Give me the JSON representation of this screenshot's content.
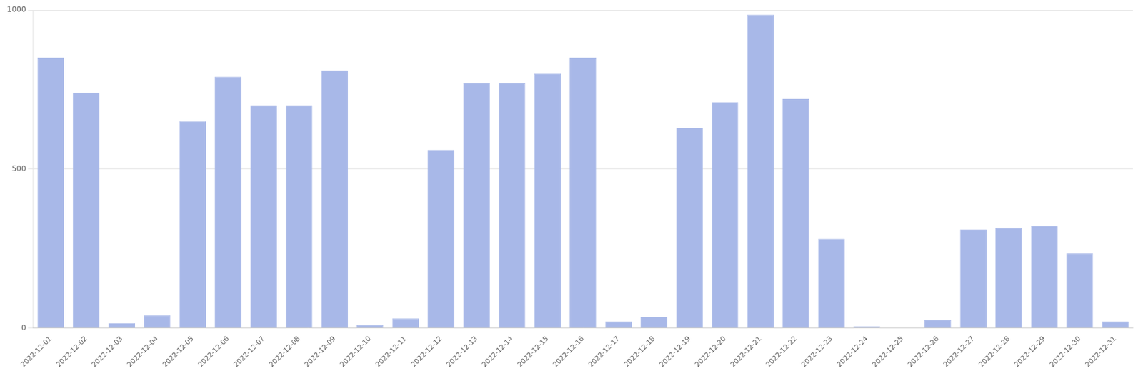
{
  "chart_data": {
    "type": "bar",
    "categories": [
      "2022-12-01",
      "2022-12-02",
      "2022-12-03",
      "2022-12-04",
      "2022-12-05",
      "2022-12-06",
      "2022-12-07",
      "2022-12-08",
      "2022-12-09",
      "2022-12-10",
      "2022-12-11",
      "2022-12-12",
      "2022-12-13",
      "2022-12-14",
      "2022-12-15",
      "2022-12-16",
      "2022-12-17",
      "2022-12-18",
      "2022-12-19",
      "2022-12-20",
      "2022-12-21",
      "2022-12-22",
      "2022-12-23",
      "2022-12-24",
      "2022-12-25",
      "2022-12-26",
      "2022-12-27",
      "2022-12-28",
      "2022-12-29",
      "2022-12-30",
      "2022-12-31"
    ],
    "values": [
      850,
      740,
      15,
      40,
      650,
      790,
      700,
      700,
      810,
      10,
      30,
      560,
      770,
      770,
      800,
      850,
      20,
      35,
      630,
      710,
      985,
      720,
      280,
      5,
      0,
      25,
      310,
      315,
      320,
      235,
      20
    ],
    "color": "#a8b8e8",
    "ylim": [
      0,
      1000
    ],
    "yticks": [
      0,
      500,
      1000
    ],
    "grid": true
  }
}
